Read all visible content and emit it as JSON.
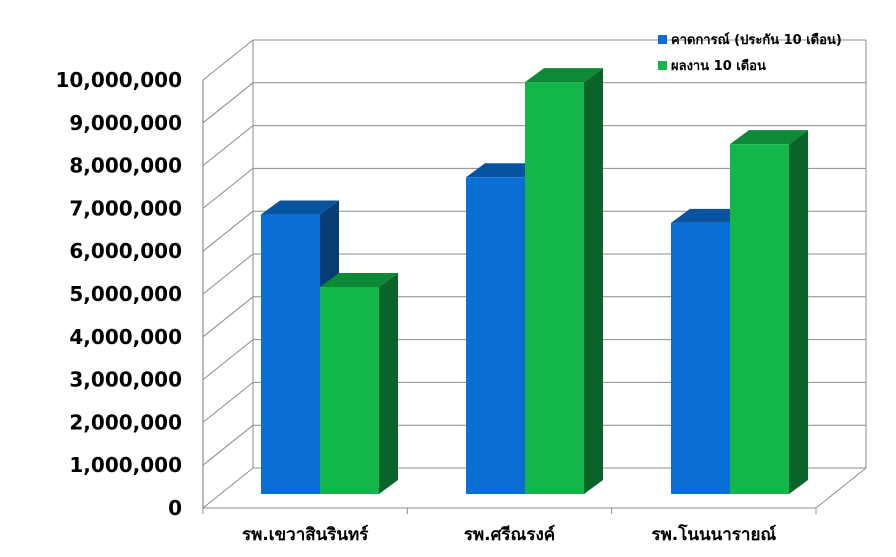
{
  "chart_data": {
    "type": "bar",
    "categories": [
      "รพ.เขวาสินรินทร์",
      "รพ.ศรีณรงค์",
      "รพ.โนนนารายณ์"
    ],
    "series": [
      {
        "name": "คาดการณ์ (ประกัน 10 เดือน)",
        "values": [
          6750000,
          7650000,
          6550000
        ],
        "color": "#0a6fd4"
      },
      {
        "name": "ผลงาน 10 เดือน",
        "values": [
          5000000,
          9950000,
          8450000
        ],
        "color": "#12b64a"
      }
    ],
    "ylim": [
      0,
      10000000
    ],
    "yticks": [
      0,
      1000000,
      2000000,
      3000000,
      4000000,
      5000000,
      6000000,
      7000000,
      8000000,
      9000000,
      10000000
    ],
    "ytick_labels": [
      "0",
      "1,000,000",
      "2,000,000",
      "3,000,000",
      "4,000,000",
      "5,000,000",
      "6,000,000",
      "7,000,000",
      "8,000,000",
      "9,000,000",
      "10,000,000"
    ],
    "grid": true,
    "legend_position": "top-right",
    "three_d": true
  }
}
